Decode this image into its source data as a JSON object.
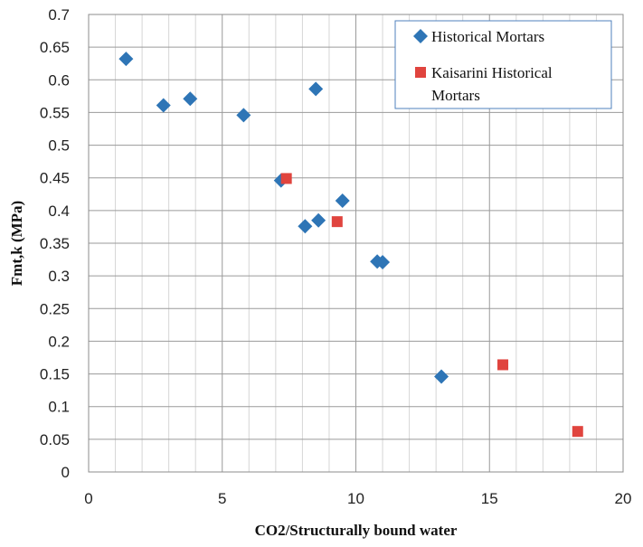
{
  "chart_data": {
    "type": "scatter",
    "title": "",
    "xlabel": "CO2/Structurally bound water",
    "ylabel": "Fmt,k (MPa)",
    "xlim": [
      0,
      20
    ],
    "ylim": [
      0,
      0.7
    ],
    "x_ticks": [
      "0",
      "5",
      "10",
      "15",
      "20"
    ],
    "y_ticks": [
      "0",
      "0.05",
      "0.1",
      "0.15",
      "0.2",
      "0.25",
      "0.3",
      "0.35",
      "0.4",
      "0.45",
      "0.5",
      "0.55",
      "0.6",
      "0.65",
      "0.7"
    ],
    "grid": true,
    "legend_position": "top-right",
    "series": [
      {
        "name": "Historical Mortars",
        "marker": "diamond",
        "color": "#2E75B6",
        "points": [
          {
            "x": 1.4,
            "y": 0.632
          },
          {
            "x": 2.8,
            "y": 0.561
          },
          {
            "x": 3.8,
            "y": 0.571
          },
          {
            "x": 5.8,
            "y": 0.546
          },
          {
            "x": 7.2,
            "y": 0.446
          },
          {
            "x": 8.1,
            "y": 0.376
          },
          {
            "x": 8.5,
            "y": 0.586
          },
          {
            "x": 8.6,
            "y": 0.385
          },
          {
            "x": 9.5,
            "y": 0.415
          },
          {
            "x": 10.8,
            "y": 0.322
          },
          {
            "x": 11.0,
            "y": 0.321
          },
          {
            "x": 13.2,
            "y": 0.146
          }
        ]
      },
      {
        "name": "Kaisarini Historical Mortars",
        "marker": "square",
        "color": "#E0443E",
        "points": [
          {
            "x": 7.4,
            "y": 0.449
          },
          {
            "x": 9.3,
            "y": 0.383
          },
          {
            "x": 15.5,
            "y": 0.164
          },
          {
            "x": 18.3,
            "y": 0.062
          }
        ]
      }
    ],
    "legend": {
      "entries": [
        {
          "lines": [
            "Historical Mortars"
          ]
        },
        {
          "lines": [
            "Kaisarini Historical",
            "Mortars"
          ]
        }
      ]
    }
  }
}
